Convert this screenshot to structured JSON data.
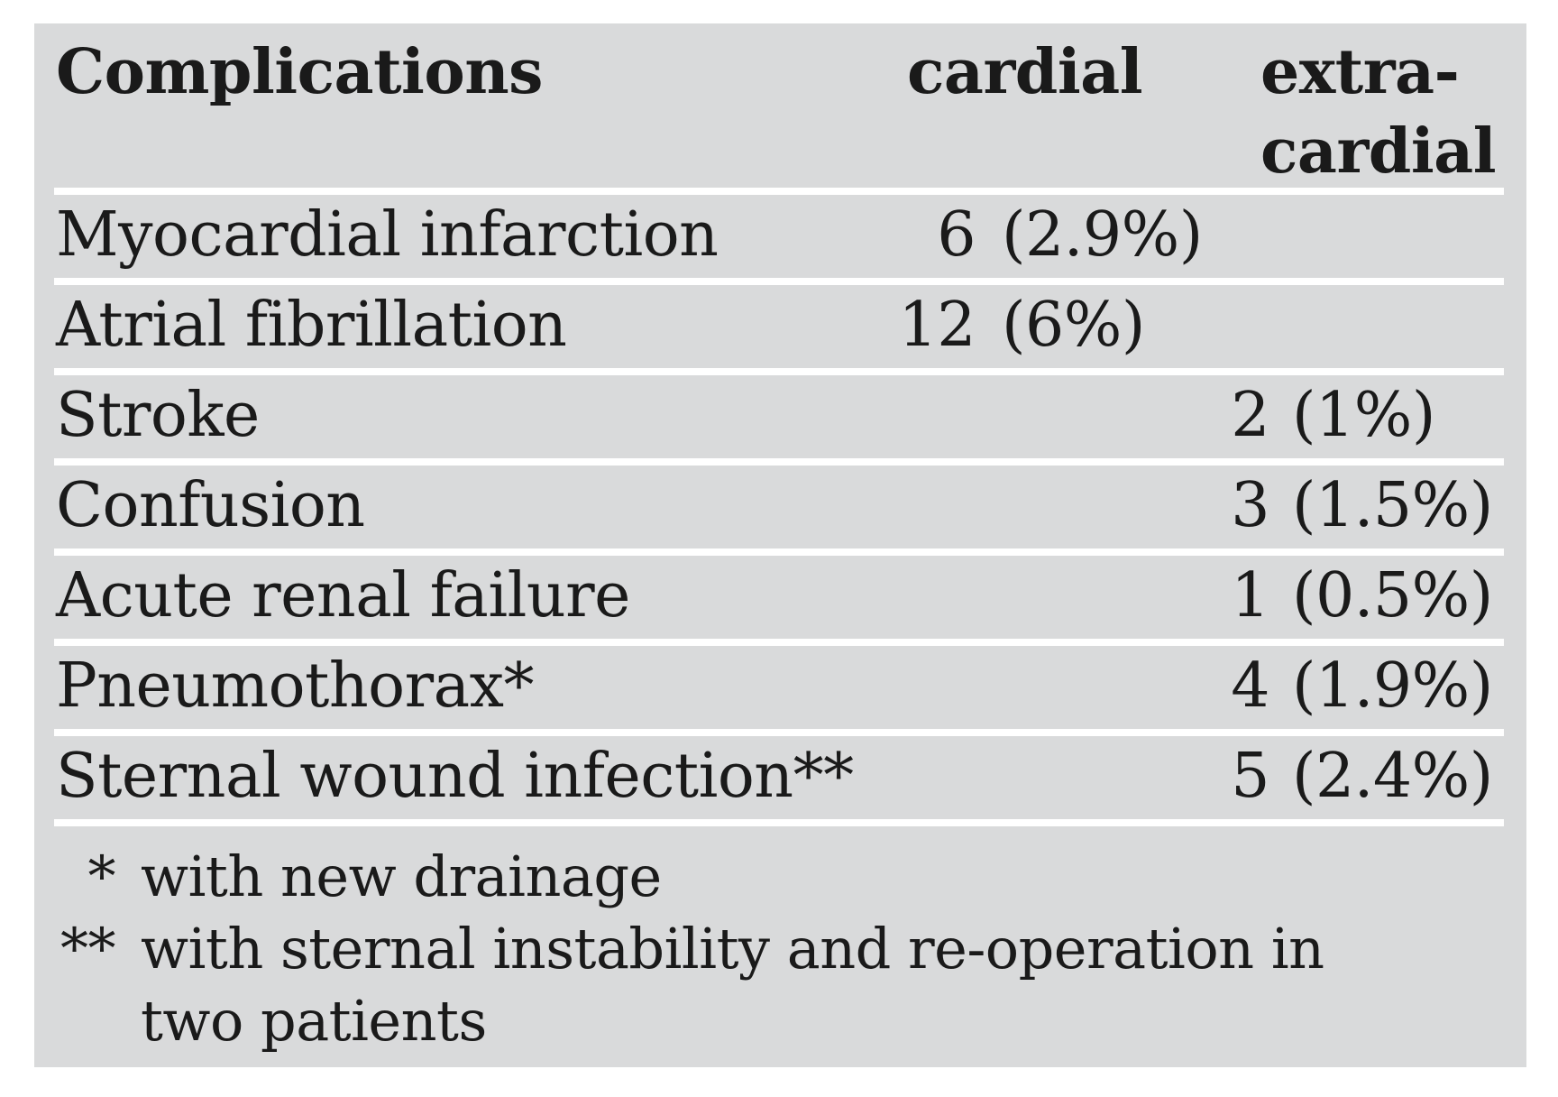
{
  "colors": {
    "table_background": "#d9dadb",
    "text": "#1a1a1a",
    "row_separator": "#ffffff",
    "page_background": "#ffffff"
  },
  "table": {
    "headers": {
      "complications": "Complications",
      "cardial": "cardial",
      "extracardial_line1": "extra-",
      "extracardial_line2": "cardial"
    },
    "rows": [
      {
        "label": "Myocardial infarction",
        "cardial_n": "6",
        "cardial_p": "(2.9%)",
        "extra_n": "",
        "extra_p": ""
      },
      {
        "label": "Atrial fibrillation",
        "cardial_n": "12",
        "cardial_p": "(6%)",
        "extra_n": "",
        "extra_p": ""
      },
      {
        "label": "Stroke",
        "cardial_n": "",
        "cardial_p": "",
        "extra_n": "2",
        "extra_p": "(1%)"
      },
      {
        "label": "Confusion",
        "cardial_n": "",
        "cardial_p": "",
        "extra_n": "3",
        "extra_p": "(1.5%)"
      },
      {
        "label": "Acute renal failure",
        "cardial_n": "",
        "cardial_p": "",
        "extra_n": "1",
        "extra_p": "(0.5%)"
      },
      {
        "label": "Pneumothorax*",
        "cardial_n": "",
        "cardial_p": "",
        "extra_n": "4",
        "extra_p": "(1.9%)"
      },
      {
        "label": "Sternal wound infection**",
        "cardial_n": "",
        "cardial_p": "",
        "extra_n": "5",
        "extra_p": "(2.4%)"
      }
    ]
  },
  "footnotes": [
    {
      "marker": "*",
      "text": "with new drainage"
    },
    {
      "marker": "**",
      "text": "with sternal instability and re-operation in"
    },
    {
      "marker": "",
      "text": "two patients"
    }
  ]
}
